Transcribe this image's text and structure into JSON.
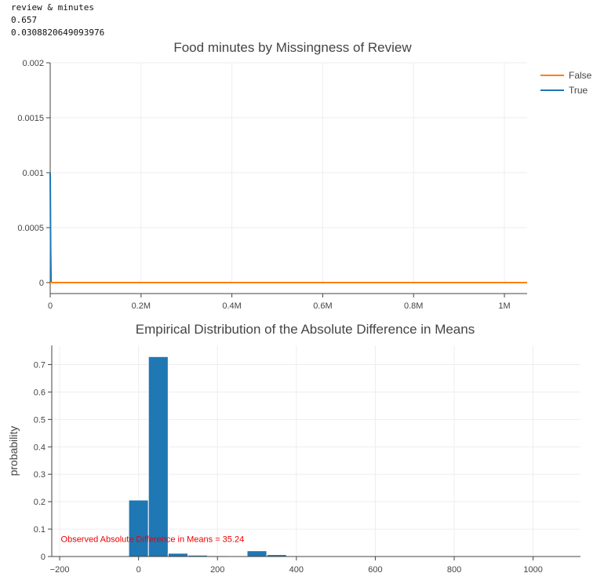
{
  "console": {
    "line1": "review & minutes",
    "line2": "0.657",
    "line3": "0.0308820649093976"
  },
  "chart_data": [
    {
      "type": "line",
      "title": "Food minutes by Missingness of Review",
      "xlabel": "",
      "ylabel": "",
      "xlim": [
        0,
        1050000
      ],
      "ylim": [
        0,
        0.002
      ],
      "x_ticks": [
        0,
        200000,
        400000,
        600000,
        800000,
        1000000
      ],
      "x_tick_labels": [
        "0",
        "0.2M",
        "0.4M",
        "0.6M",
        "0.8M",
        "1M"
      ],
      "y_ticks": [
        0,
        0.0005,
        0.001,
        0.0015,
        0.002
      ],
      "y_tick_labels": [
        "0",
        "0.0005",
        "0.001",
        "0.0015",
        "0.002"
      ],
      "grid": true,
      "legend": "top-right",
      "series": [
        {
          "name": "False",
          "color": "#ff7f0e",
          "x": [
            0,
            1000,
            2000,
            1050000
          ],
          "y": [
            0,
            0,
            0,
            0
          ]
        },
        {
          "name": "True",
          "color": "#1f77b4",
          "x": [
            0,
            1000,
            2000,
            1050000
          ],
          "y": [
            0.001,
            0.0003,
            0,
            0
          ]
        }
      ]
    },
    {
      "type": "bar",
      "title": "Empirical Distribution of the Absolute Difference in Means",
      "xlabel": "",
      "ylabel": "probability",
      "xlim": [
        -220,
        1120
      ],
      "ylim": [
        0,
        0.77
      ],
      "x_ticks": [
        -200,
        0,
        200,
        400,
        600,
        800,
        1000
      ],
      "x_tick_labels": [
        "−200",
        "0",
        "200",
        "400",
        "600",
        "800",
        "1000"
      ],
      "y_ticks": [
        0,
        0.1,
        0.2,
        0.3,
        0.4,
        0.5,
        0.6,
        0.7
      ],
      "y_tick_labels": [
        "0",
        "0.1",
        "0.2",
        "0.3",
        "0.4",
        "0.5",
        "0.6",
        "0.7"
      ],
      "grid": true,
      "color": "#1f77b4",
      "bin_width": 50,
      "bin_starts": [
        -25,
        25,
        75,
        125,
        175,
        225,
        275,
        325
      ],
      "values": [
        0.206,
        0.729,
        0.012,
        0.005,
        0.003,
        0.001,
        0.021,
        0.007
      ],
      "annotation": {
        "text": "Observed Absolute Difference in Means = 35.24",
        "x": 35.24,
        "y": 0.065
      }
    }
  ]
}
